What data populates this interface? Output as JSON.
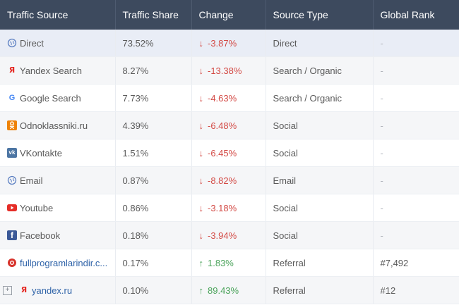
{
  "headers": [
    "Traffic Source",
    "Traffic Share",
    "Change",
    "Source Type",
    "Global Rank"
  ],
  "rows": [
    {
      "source": "Direct",
      "share": "73.52%",
      "change": "-3.87%",
      "arrow": "↓",
      "type": "Direct",
      "rank": "-",
      "icon": "globe-icon"
    },
    {
      "source": "Yandex Search",
      "share": "8.27%",
      "change": "-13.38%",
      "arrow": "↓",
      "type": "Search / Organic",
      "rank": "-",
      "icon": "yandex-icon"
    },
    {
      "source": "Google Search",
      "share": "7.73%",
      "change": "-4.63%",
      "arrow": "↓",
      "type": "Search / Organic",
      "rank": "-",
      "icon": "google-icon"
    },
    {
      "source": "Odnoklassniki.ru",
      "share": "4.39%",
      "change": "-6.48%",
      "arrow": "↓",
      "type": "Social",
      "rank": "-",
      "icon": "odnoklassniki-icon"
    },
    {
      "source": "VKontakte",
      "share": "1.51%",
      "change": "-6.45%",
      "arrow": "↓",
      "type": "Social",
      "rank": "-",
      "icon": "vkontakte-icon"
    },
    {
      "source": "Email",
      "share": "0.87%",
      "change": "-8.82%",
      "arrow": "↓",
      "type": "Email",
      "rank": "-",
      "icon": "globe-icon"
    },
    {
      "source": "Youtube",
      "share": "0.86%",
      "change": "-3.18%",
      "arrow": "↓",
      "type": "Social",
      "rank": "-",
      "icon": "youtube-icon"
    },
    {
      "source": "Facebook",
      "share": "0.18%",
      "change": "-3.94%",
      "arrow": "↓",
      "type": "Social",
      "rank": "-",
      "icon": "facebook-icon"
    },
    {
      "source": "fullprogramlarindir.c...",
      "share": "0.17%",
      "change": "1.83%",
      "arrow": "↑",
      "type": "Referral",
      "rank": "#7,492",
      "icon": "site-favicon-icon"
    },
    {
      "source": "yandex.ru",
      "share": "0.10%",
      "change": "89.43%",
      "arrow": "↑",
      "type": "Referral",
      "rank": "#12",
      "icon": "yandex-icon"
    }
  ],
  "colors": {
    "header_bg": "#3d4a5e",
    "negative": "#d34a45",
    "positive": "#4aa35a",
    "link": "#2f63a8"
  }
}
